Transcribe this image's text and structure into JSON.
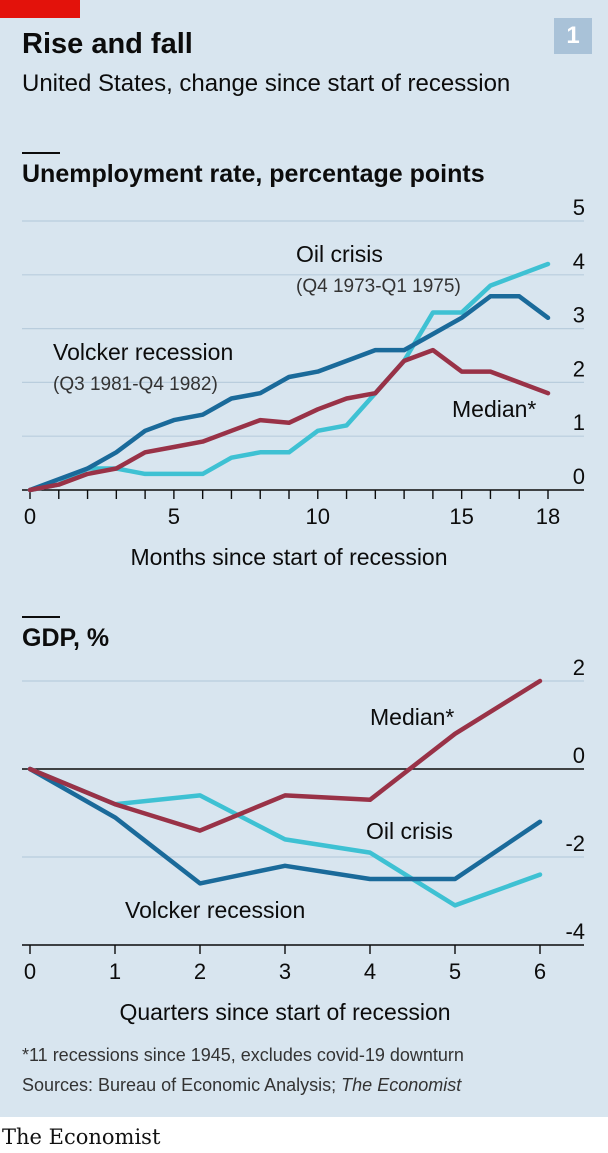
{
  "header": {
    "title": "Rise and fall",
    "subtitle": "United States, change since start of recession",
    "badge": "1"
  },
  "footer": {
    "footnote": "*11 recessions since 1945, excludes covid-19 downturn",
    "source_prefix": "Sources: Bureau of Economic Analysis; ",
    "source_emph": "The Economist",
    "brand": "The Economist"
  },
  "colors": {
    "volcker": "#1a6a9a",
    "oil": "#3ec1d3",
    "median": "#993247"
  },
  "chart_data": [
    {
      "type": "line",
      "title": "Unemployment rate, percentage points",
      "xlabel": "Months since start of recession",
      "ylabel": "",
      "xlim": [
        0,
        18
      ],
      "ylim": [
        0,
        5
      ],
      "xticks": [
        0,
        5,
        10,
        15,
        18
      ],
      "yticks": [
        0,
        1,
        2,
        3,
        4,
        5
      ],
      "grid": true,
      "series": [
        {
          "name": "Volcker recession",
          "subname": "(Q3 1981-Q4 1982)",
          "color": "#1a6a9a",
          "x": [
            0,
            1,
            2,
            3,
            4,
            5,
            6,
            7,
            8,
            9,
            10,
            11,
            12,
            13,
            14,
            15,
            16,
            17,
            18
          ],
          "y": [
            0,
            0.2,
            0.4,
            0.7,
            1.1,
            1.3,
            1.4,
            1.7,
            1.8,
            2.1,
            2.2,
            2.4,
            2.6,
            2.6,
            2.9,
            3.2,
            3.6,
            3.6,
            3.2
          ]
        },
        {
          "name": "Oil crisis",
          "subname": "(Q4 1973-Q1 1975)",
          "color": "#3ec1d3",
          "x": [
            0,
            1,
            2,
            3,
            4,
            5,
            6,
            7,
            8,
            9,
            10,
            11,
            12,
            13,
            14,
            15,
            16,
            17,
            18
          ],
          "y": [
            0,
            0.1,
            0.4,
            0.4,
            0.3,
            0.3,
            0.3,
            0.6,
            0.7,
            0.7,
            1.1,
            1.2,
            1.8,
            2.4,
            3.3,
            3.3,
            3.8,
            4.0,
            4.2
          ]
        },
        {
          "name": "Median*",
          "color": "#993247",
          "x": [
            0,
            1,
            2,
            3,
            4,
            5,
            6,
            7,
            8,
            9,
            10,
            11,
            12,
            13,
            14,
            15,
            16,
            17,
            18
          ],
          "y": [
            0,
            0.1,
            0.3,
            0.4,
            0.7,
            0.8,
            0.9,
            1.1,
            1.3,
            1.25,
            1.5,
            1.7,
            1.8,
            2.4,
            2.6,
            2.2,
            2.2,
            2.0,
            1.8
          ]
        }
      ]
    },
    {
      "type": "line",
      "title": "GDP, %",
      "xlabel": "Quarters since start of recession",
      "ylabel": "",
      "xlim": [
        0,
        6
      ],
      "ylim": [
        -4,
        2
      ],
      "xticks": [
        0,
        1,
        2,
        3,
        4,
        5,
        6
      ],
      "yticks": [
        -4,
        -2,
        0,
        2
      ],
      "grid": true,
      "series": [
        {
          "name": "Volcker recession",
          "color": "#1a6a9a",
          "x": [
            0,
            1,
            2,
            3,
            4,
            5,
            6
          ],
          "y": [
            0,
            -1.1,
            -2.6,
            -2.2,
            -2.5,
            -2.5,
            -1.2
          ]
        },
        {
          "name": "Oil crisis",
          "color": "#3ec1d3",
          "x": [
            0,
            1,
            2,
            3,
            4,
            5,
            6
          ],
          "y": [
            0,
            -0.8,
            -0.6,
            -1.6,
            -1.9,
            -3.1,
            -2.4
          ]
        },
        {
          "name": "Median*",
          "color": "#993247",
          "x": [
            0,
            1,
            2,
            3,
            4,
            5,
            6
          ],
          "y": [
            0,
            -0.8,
            -1.4,
            -0.6,
            -0.7,
            0.8,
            2.0
          ]
        }
      ]
    }
  ]
}
